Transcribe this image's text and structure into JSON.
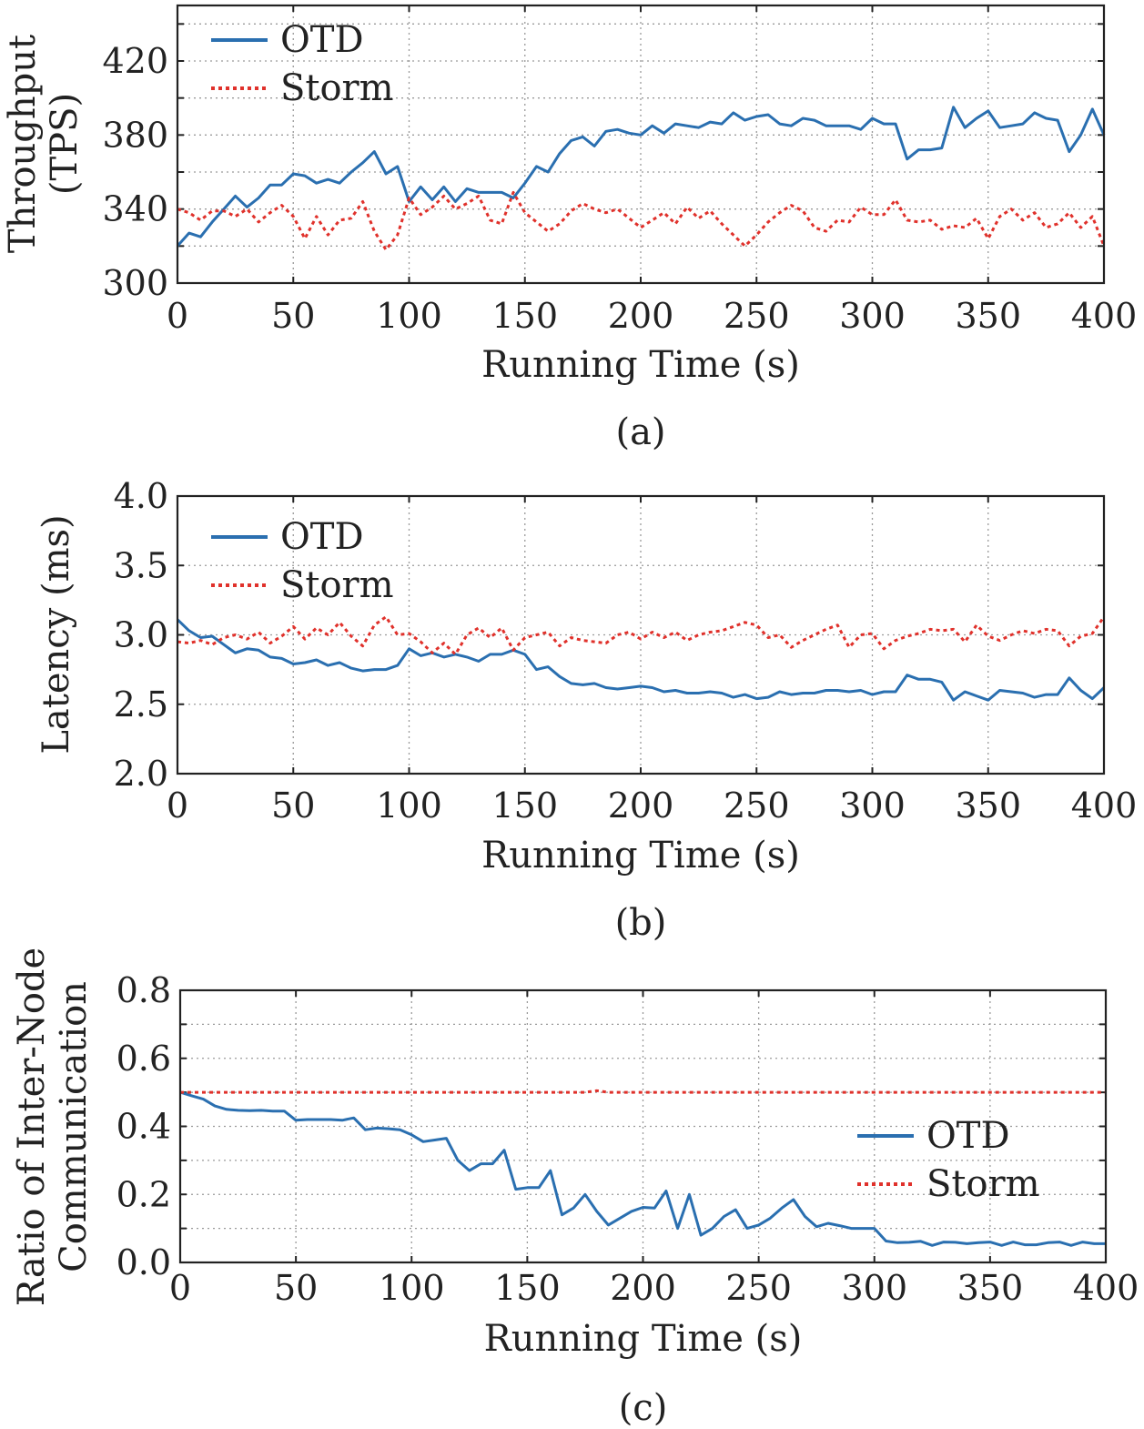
{
  "colors": {
    "otd": "#2a6fb0",
    "storm": "#e0312b"
  },
  "chart_data": [
    {
      "type": "line",
      "caption": "(a)",
      "xlabel": "Running Time (s)",
      "ylabel": [
        "Throughput",
        "(TPS)"
      ],
      "xlim": [
        0,
        400
      ],
      "ylim": [
        300,
        450
      ],
      "xticks": [
        0,
        50,
        100,
        150,
        200,
        250,
        300,
        350,
        400
      ],
      "yticks": [
        300,
        340,
        380,
        420
      ],
      "yminor": [
        320,
        360,
        400,
        440
      ],
      "ydecimals": 0,
      "grid": true,
      "legend": {
        "position": "top-left",
        "entries": [
          "OTD",
          "Storm"
        ]
      },
      "series": [
        {
          "name": "OTD",
          "x": [
            0,
            5,
            10,
            15,
            20,
            25,
            30,
            35,
            40,
            45,
            50,
            55,
            60,
            65,
            70,
            75,
            80,
            85,
            90,
            95,
            100,
            105,
            110,
            115,
            120,
            125,
            130,
            135,
            140,
            145,
            150,
            155,
            160,
            165,
            170,
            175,
            180,
            185,
            190,
            195,
            200,
            205,
            210,
            215,
            220,
            225,
            230,
            235,
            240,
            245,
            250,
            255,
            260,
            265,
            270,
            275,
            280,
            285,
            290,
            295,
            300,
            305,
            310,
            315,
            320,
            325,
            330,
            335,
            340,
            345,
            350,
            355,
            360,
            365,
            370,
            375,
            380,
            385,
            390,
            395,
            400
          ],
          "y": [
            320,
            327,
            325,
            333,
            340,
            347,
            341,
            346,
            353,
            353,
            359,
            358,
            354,
            356,
            354,
            360,
            365,
            371,
            359,
            363,
            344,
            352,
            345,
            352,
            344,
            351,
            349,
            349,
            349,
            346,
            354,
            363,
            360,
            370,
            377,
            379,
            374,
            382,
            383,
            381,
            380,
            385,
            381,
            386,
            385,
            384,
            387,
            386,
            392,
            388,
            390,
            391,
            386,
            385,
            389,
            388,
            385,
            385,
            385,
            383,
            389,
            386,
            386,
            367,
            372,
            372,
            373,
            395,
            384,
            389,
            393,
            384,
            385,
            386,
            392,
            389,
            388,
            371,
            380,
            394,
            380
          ]
        },
        {
          "name": "Storm",
          "x": [
            0,
            5,
            10,
            15,
            20,
            25,
            30,
            35,
            40,
            45,
            50,
            55,
            60,
            65,
            70,
            75,
            80,
            85,
            90,
            95,
            100,
            105,
            110,
            115,
            120,
            125,
            130,
            135,
            140,
            145,
            150,
            155,
            160,
            165,
            170,
            175,
            180,
            185,
            190,
            195,
            200,
            205,
            210,
            215,
            220,
            225,
            230,
            235,
            240,
            245,
            250,
            255,
            260,
            265,
            270,
            275,
            280,
            285,
            290,
            295,
            300,
            305,
            310,
            315,
            320,
            325,
            330,
            335,
            340,
            345,
            350,
            355,
            360,
            365,
            370,
            375,
            380,
            385,
            390,
            395,
            400
          ],
          "y": [
            340,
            338,
            334,
            339,
            339,
            336,
            340,
            333,
            338,
            342,
            336,
            324,
            336,
            326,
            334,
            335,
            344,
            328,
            318,
            326,
            346,
            337,
            341,
            347,
            340,
            343,
            347,
            334,
            332,
            349,
            338,
            333,
            328,
            332,
            339,
            343,
            340,
            338,
            340,
            335,
            330,
            334,
            338,
            332,
            341,
            335,
            339,
            332,
            326,
            320,
            326,
            333,
            338,
            342,
            339,
            330,
            328,
            334,
            333,
            341,
            337,
            337,
            345,
            334,
            333,
            334,
            329,
            331,
            330,
            335,
            324,
            336,
            340,
            334,
            338,
            330,
            332,
            338,
            330,
            336,
            320
          ]
        }
      ]
    },
    {
      "type": "line",
      "caption": "(b)",
      "xlabel": "Running Time (s)",
      "ylabel": [
        "Latency (ms)"
      ],
      "xlim": [
        0,
        400
      ],
      "ylim": [
        2.0,
        4.0
      ],
      "xticks": [
        0,
        50,
        100,
        150,
        200,
        250,
        300,
        350,
        400
      ],
      "yticks": [
        2.0,
        2.5,
        3.0,
        3.5,
        4.0
      ],
      "yminor": [],
      "ydecimals": 1,
      "grid": true,
      "legend": {
        "position": "top-left",
        "entries": [
          "OTD",
          "Storm"
        ]
      },
      "series": [
        {
          "name": "OTD",
          "x": [
            0,
            5,
            10,
            15,
            20,
            25,
            30,
            35,
            40,
            45,
            50,
            55,
            60,
            65,
            70,
            75,
            80,
            85,
            90,
            95,
            100,
            105,
            110,
            115,
            120,
            125,
            130,
            135,
            140,
            145,
            150,
            155,
            160,
            165,
            170,
            175,
            180,
            185,
            190,
            195,
            200,
            205,
            210,
            215,
            220,
            225,
            230,
            235,
            240,
            245,
            250,
            255,
            260,
            265,
            270,
            275,
            280,
            285,
            290,
            295,
            300,
            305,
            310,
            315,
            320,
            325,
            330,
            335,
            340,
            345,
            350,
            355,
            360,
            365,
            370,
            375,
            380,
            385,
            390,
            395,
            400
          ],
          "y": [
            3.11,
            3.03,
            2.98,
            2.99,
            2.93,
            2.87,
            2.9,
            2.89,
            2.84,
            2.83,
            2.79,
            2.8,
            2.82,
            2.78,
            2.8,
            2.76,
            2.74,
            2.75,
            2.75,
            2.78,
            2.9,
            2.85,
            2.87,
            2.84,
            2.86,
            2.84,
            2.81,
            2.86,
            2.86,
            2.89,
            2.86,
            2.75,
            2.77,
            2.7,
            2.65,
            2.64,
            2.65,
            2.62,
            2.61,
            2.62,
            2.63,
            2.62,
            2.59,
            2.6,
            2.58,
            2.58,
            2.59,
            2.58,
            2.55,
            2.57,
            2.54,
            2.55,
            2.59,
            2.57,
            2.58,
            2.58,
            2.6,
            2.6,
            2.59,
            2.6,
            2.57,
            2.59,
            2.59,
            2.71,
            2.68,
            2.68,
            2.66,
            2.53,
            2.59,
            2.56,
            2.53,
            2.6,
            2.59,
            2.58,
            2.55,
            2.57,
            2.57,
            2.69,
            2.6,
            2.54,
            2.62
          ]
        },
        {
          "name": "Storm",
          "x": [
            0,
            5,
            10,
            15,
            20,
            25,
            30,
            35,
            40,
            45,
            50,
            55,
            60,
            65,
            70,
            75,
            80,
            85,
            90,
            95,
            100,
            105,
            110,
            115,
            120,
            125,
            130,
            135,
            140,
            145,
            150,
            155,
            160,
            165,
            170,
            175,
            180,
            185,
            190,
            195,
            200,
            205,
            210,
            215,
            220,
            225,
            230,
            235,
            240,
            245,
            250,
            255,
            260,
            265,
            270,
            275,
            280,
            285,
            290,
            295,
            300,
            305,
            310,
            315,
            320,
            325,
            330,
            335,
            340,
            345,
            350,
            355,
            360,
            365,
            370,
            375,
            380,
            385,
            390,
            395,
            400
          ],
          "y": [
            2.95,
            2.94,
            2.96,
            2.93,
            2.98,
            3.0,
            2.97,
            3.02,
            2.94,
            2.99,
            3.06,
            2.97,
            3.05,
            3.0,
            3.09,
            2.99,
            2.92,
            3.07,
            3.13,
            3.0,
            3.01,
            2.95,
            2.87,
            2.94,
            2.86,
            3.0,
            3.05,
            2.98,
            3.05,
            2.89,
            2.98,
            3.0,
            3.02,
            2.92,
            2.98,
            2.96,
            2.95,
            2.94,
            3.0,
            3.02,
            2.97,
            3.02,
            2.98,
            3.02,
            2.96,
            3.0,
            3.02,
            3.03,
            3.06,
            3.09,
            3.07,
            2.98,
            3.0,
            2.91,
            2.96,
            3.0,
            3.04,
            3.07,
            2.91,
            3.0,
            3.01,
            2.9,
            2.96,
            2.99,
            3.01,
            3.04,
            3.03,
            3.04,
            2.95,
            3.07,
            2.99,
            2.96,
            3.0,
            3.03,
            3.01,
            3.04,
            3.03,
            2.92,
            2.99,
            3.01,
            3.13
          ]
        }
      ]
    },
    {
      "type": "line",
      "caption": "(c)",
      "xlabel": "Running Time (s)",
      "ylabel": [
        "Ratio of Inter-Node",
        "Communication"
      ],
      "xlim": [
        0,
        400
      ],
      "ylim": [
        0.0,
        0.8
      ],
      "xticks": [
        0,
        50,
        100,
        150,
        200,
        250,
        300,
        350,
        400
      ],
      "yticks": [
        0.0,
        0.2,
        0.4,
        0.6,
        0.8
      ],
      "yminor": [
        0.1,
        0.3,
        0.5,
        0.7
      ],
      "ydecimals": 1,
      "grid": true,
      "legend": {
        "position": "right",
        "entries": [
          "OTD",
          "Storm"
        ]
      },
      "series": [
        {
          "name": "OTD",
          "x": [
            0,
            5,
            10,
            15,
            20,
            25,
            30,
            35,
            40,
            45,
            50,
            55,
            60,
            65,
            70,
            75,
            80,
            85,
            90,
            95,
            100,
            105,
            110,
            115,
            120,
            125,
            130,
            135,
            140,
            145,
            150,
            155,
            160,
            165,
            170,
            175,
            180,
            185,
            190,
            195,
            200,
            205,
            210,
            215,
            220,
            225,
            230,
            235,
            240,
            245,
            250,
            255,
            260,
            265,
            270,
            275,
            280,
            285,
            290,
            295,
            300,
            305,
            310,
            315,
            320,
            325,
            330,
            335,
            340,
            345,
            350,
            355,
            360,
            365,
            370,
            375,
            380,
            385,
            390,
            395,
            400
          ],
          "y": [
            0.5,
            0.49,
            0.48,
            0.46,
            0.45,
            0.447,
            0.446,
            0.447,
            0.445,
            0.445,
            0.418,
            0.42,
            0.42,
            0.42,
            0.418,
            0.425,
            0.39,
            0.395,
            0.393,
            0.39,
            0.375,
            0.355,
            0.36,
            0.365,
            0.3,
            0.27,
            0.29,
            0.29,
            0.33,
            0.215,
            0.22,
            0.22,
            0.27,
            0.14,
            0.16,
            0.2,
            0.15,
            0.11,
            0.13,
            0.15,
            0.162,
            0.16,
            0.21,
            0.1,
            0.2,
            0.08,
            0.1,
            0.135,
            0.155,
            0.1,
            0.11,
            0.13,
            0.16,
            0.185,
            0.135,
            0.105,
            0.115,
            0.108,
            0.1,
            0.1,
            0.1,
            0.063,
            0.058,
            0.059,
            0.062,
            0.05,
            0.06,
            0.059,
            0.055,
            0.058,
            0.06,
            0.05,
            0.06,
            0.052,
            0.052,
            0.058,
            0.06,
            0.05,
            0.06,
            0.055,
            0.055
          ]
        },
        {
          "name": "Storm",
          "x": [
            0,
            5,
            10,
            15,
            20,
            25,
            30,
            35,
            40,
            45,
            50,
            55,
            60,
            65,
            70,
            75,
            80,
            85,
            90,
            95,
            100,
            105,
            110,
            115,
            120,
            125,
            130,
            135,
            140,
            145,
            150,
            155,
            160,
            165,
            170,
            175,
            180,
            185,
            190,
            195,
            200,
            205,
            210,
            215,
            220,
            225,
            230,
            235,
            240,
            245,
            250,
            255,
            260,
            265,
            270,
            275,
            280,
            285,
            290,
            295,
            300,
            305,
            310,
            315,
            320,
            325,
            330,
            335,
            340,
            345,
            350,
            355,
            360,
            365,
            370,
            375,
            380,
            385,
            390,
            395,
            400
          ],
          "y": [
            0.5,
            0.5,
            0.5,
            0.5,
            0.5,
            0.5,
            0.5,
            0.5,
            0.5,
            0.5,
            0.5,
            0.5,
            0.5,
            0.5,
            0.5,
            0.5,
            0.5,
            0.5,
            0.5,
            0.5,
            0.5,
            0.5,
            0.5,
            0.5,
            0.5,
            0.5,
            0.5,
            0.5,
            0.5,
            0.5,
            0.5,
            0.5,
            0.5,
            0.5,
            0.5,
            0.5,
            0.505,
            0.5,
            0.5,
            0.5,
            0.5,
            0.5,
            0.5,
            0.5,
            0.5,
            0.5,
            0.5,
            0.5,
            0.5,
            0.5,
            0.5,
            0.5,
            0.5,
            0.5,
            0.5,
            0.5,
            0.5,
            0.5,
            0.5,
            0.5,
            0.5,
            0.5,
            0.5,
            0.5,
            0.5,
            0.5,
            0.5,
            0.5,
            0.5,
            0.5,
            0.5,
            0.5,
            0.5,
            0.5,
            0.5,
            0.5,
            0.5,
            0.5,
            0.5,
            0.5,
            0.5
          ]
        }
      ]
    }
  ]
}
